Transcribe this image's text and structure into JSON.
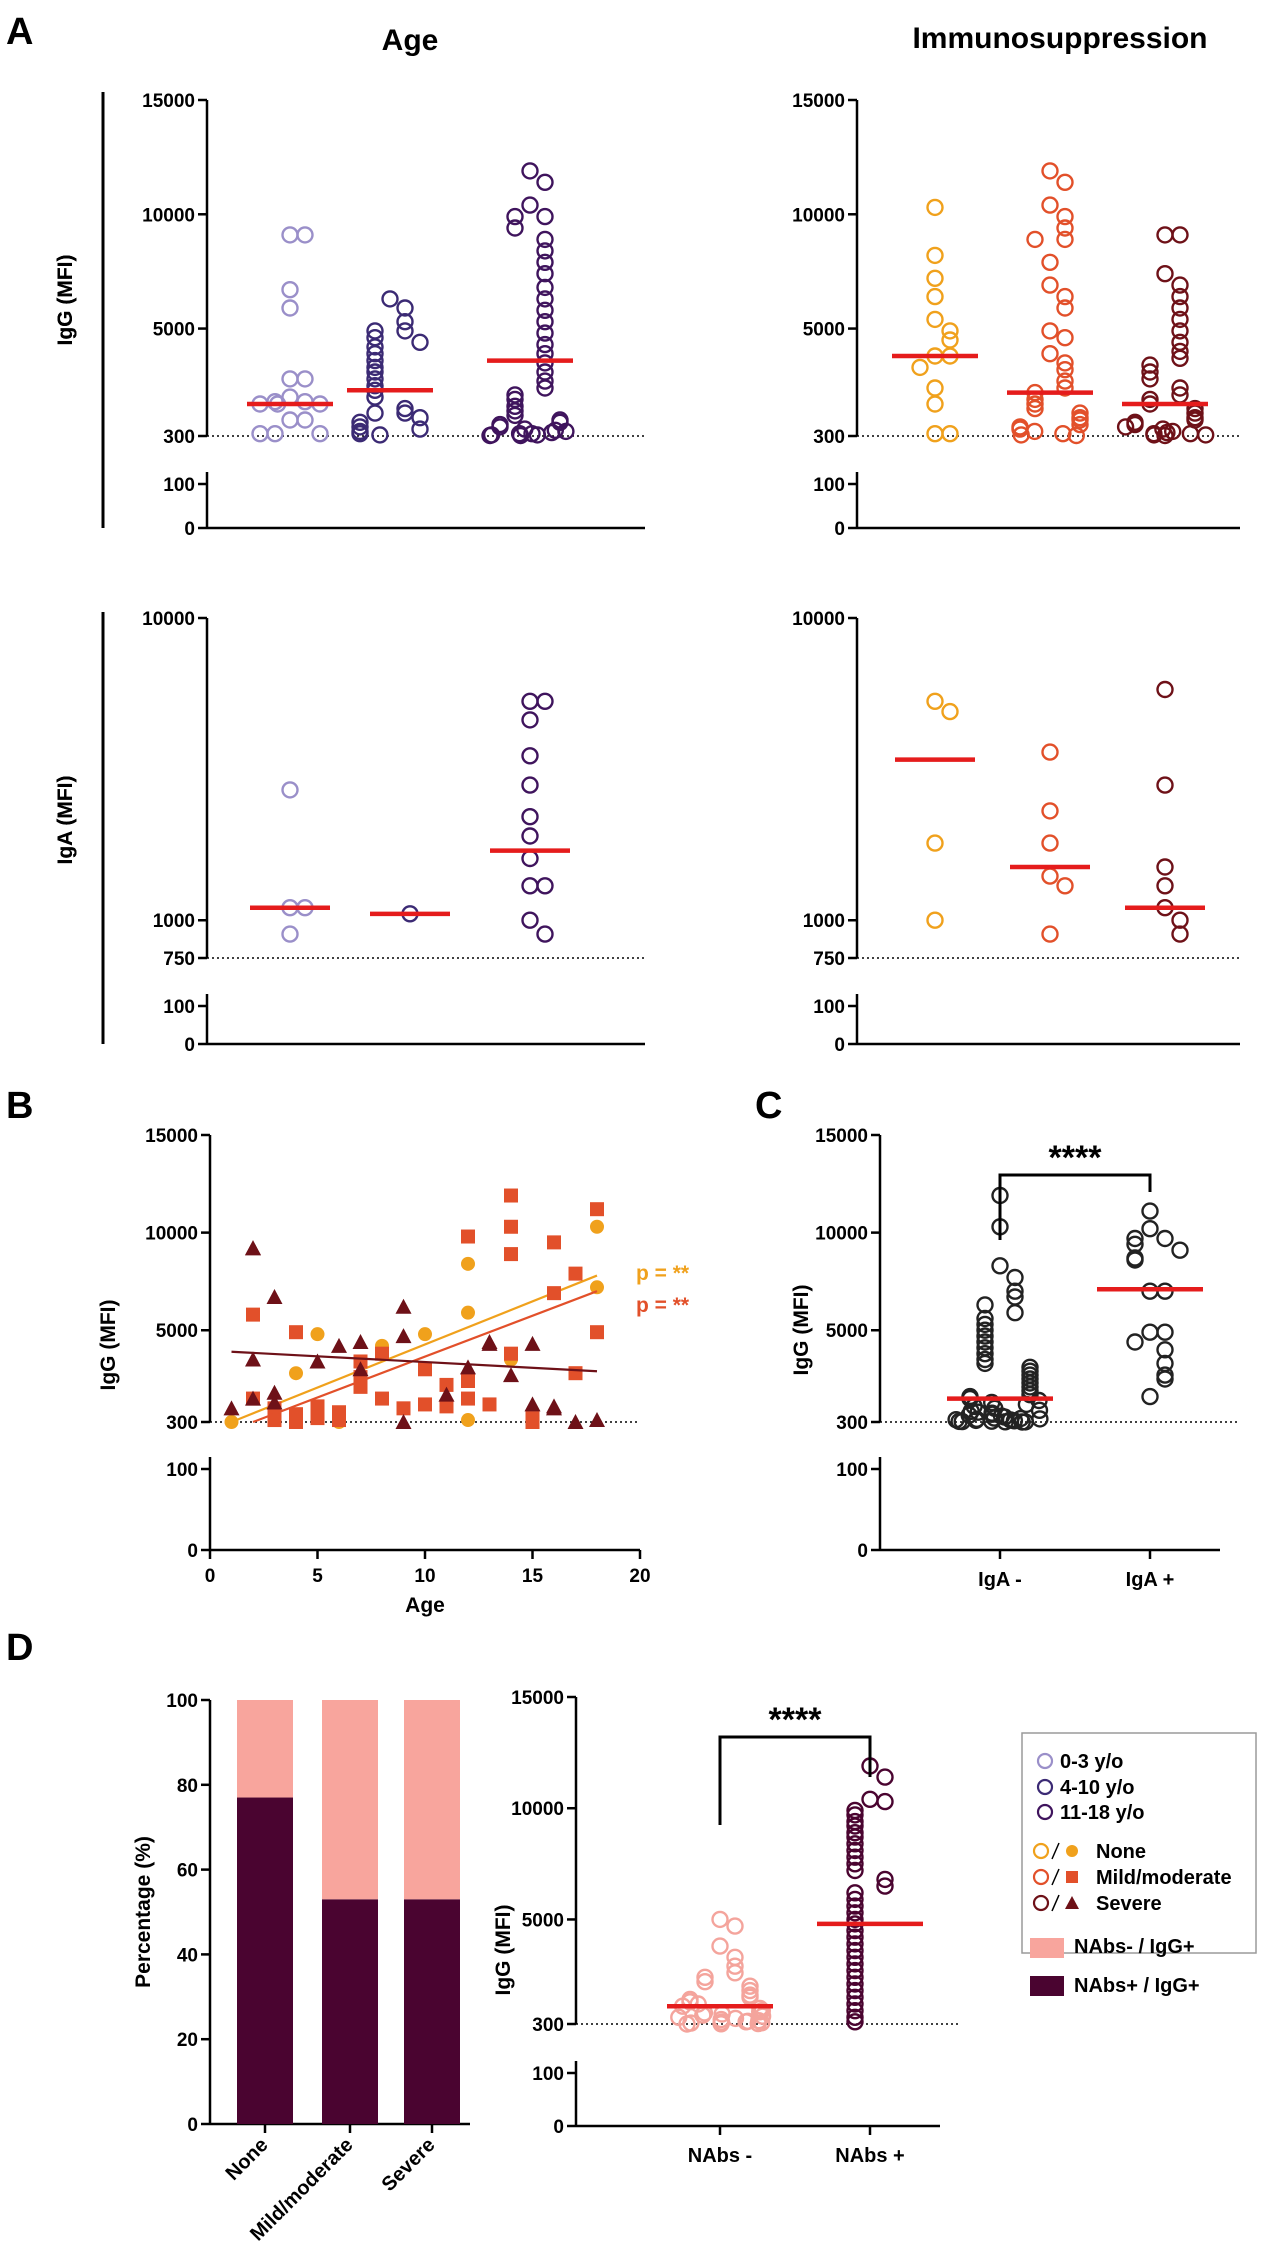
{
  "panel_labels": {
    "a": "A",
    "b": "B",
    "c": "C",
    "d": "D"
  },
  "titles": {
    "age": "Age",
    "immuno": "Immunosuppression"
  },
  "colors": {
    "age_0_3": "#9a8fc9",
    "age_4_10": "#3b2a74",
    "age_11_18": "#3f145d",
    "none": "#f0a11c",
    "mild": "#e2502a",
    "severe": "#6e1118",
    "median": "#e51c1c",
    "black": "#222222",
    "nabs_neg": "#f4a49c",
    "nabs_pos": "#4a0430",
    "bar_neg": "#f8a59d",
    "bar_pos": "#4a0430"
  },
  "legend": {
    "age_0_3": "0-3 y/o",
    "age_4_10": "4-10 y/o",
    "age_11_18": "11-18 y/o",
    "none": "None",
    "mild": "Mild/moderate",
    "severe": "Severe",
    "nabs_neg": "NAbs- / IgG+",
    "nabs_pos": "NAbs+ / IgG+"
  },
  "chart_data": [
    {
      "id": "A-igg-age",
      "type": "scatter",
      "ylabel": "IgG (MFI)",
      "y_upper_ticks": [
        300,
        5000,
        10000,
        15000
      ],
      "y_lower_ticks": [
        0,
        100
      ],
      "threshold": 300,
      "groups": [
        {
          "name": "0-3 y/o",
          "color_key": "age_0_3",
          "median": 1700,
          "values": [
            9100,
            9100,
            6700,
            5900,
            2800,
            2800,
            2000,
            1800,
            1800,
            1700,
            1700,
            1700,
            1000,
            1000,
            400,
            400,
            400
          ]
        },
        {
          "name": "4-10 y/o",
          "color_key": "age_4_10",
          "median": 2300,
          "values": [
            6300,
            5900,
            5300,
            4900,
            4900,
            4600,
            4400,
            4200,
            3900,
            3600,
            3300,
            3100,
            2800,
            2500,
            2300,
            2000,
            1500,
            1300,
            1300,
            1100,
            900,
            700,
            600,
            500,
            400,
            350
          ]
        },
        {
          "name": "11-18 y/o",
          "color_key": "age_11_18",
          "median": 3600,
          "values": [
            11900,
            11400,
            10400,
            9900,
            9900,
            9400,
            8900,
            8400,
            7900,
            7400,
            6800,
            6300,
            5800,
            5300,
            4800,
            4300,
            3900,
            3500,
            3100,
            2700,
            2400,
            2100,
            1900,
            1600,
            1400,
            1200,
            1000,
            900,
            800,
            700,
            600,
            550,
            500,
            450,
            400,
            400,
            350,
            350,
            320,
            320
          ]
        }
      ]
    },
    {
      "id": "A-igg-immuno",
      "type": "scatter",
      "ylabel": "IgG (MFI)",
      "y_upper_ticks": [
        300,
        5000,
        10000,
        15000
      ],
      "y_lower_ticks": [
        0,
        100
      ],
      "threshold": 300,
      "groups": [
        {
          "name": "None",
          "color_key": "none",
          "median": 3800,
          "values": [
            10300,
            8200,
            7200,
            6400,
            5400,
            4900,
            4500,
            3800,
            3800,
            3300,
            2400,
            1700,
            400,
            400
          ]
        },
        {
          "name": "Mild/moderate",
          "color_key": "mild",
          "median": 2200,
          "values": [
            11900,
            11400,
            10400,
            9900,
            9400,
            8900,
            8900,
            7900,
            6900,
            6400,
            5900,
            4900,
            4600,
            3900,
            3500,
            3200,
            2700,
            2400,
            2200,
            1900,
            1700,
            1500,
            1300,
            1100,
            1000,
            800,
            700,
            600,
            500,
            400,
            350,
            320
          ]
        },
        {
          "name": "Severe",
          "color_key": "severe",
          "median": 1700,
          "values": [
            9100,
            9100,
            7400,
            6900,
            6400,
            5900,
            5400,
            4900,
            4400,
            4000,
            3700,
            3400,
            3100,
            2800,
            2400,
            2100,
            1900,
            1700,
            1500,
            1300,
            1100,
            1000,
            900,
            800,
            700,
            600,
            500,
            450,
            400,
            400,
            350,
            350,
            320
          ]
        }
      ]
    },
    {
      "id": "A-iga-age",
      "type": "scatter",
      "ylabel": "IgA (MFI)",
      "y_upper_ticks": [
        750,
        1000,
        10000
      ],
      "y_lower_ticks": [
        0,
        100
      ],
      "threshold": 750,
      "groups": [
        {
          "name": "0-3 y/o",
          "color_key": "age_0_3",
          "median": 1100,
          "values": [
            2700,
            1100,
            1100,
            900
          ]
        },
        {
          "name": "4-10 y/o",
          "color_key": "age_4_10",
          "median": 1050,
          "values": [
            1050
          ]
        },
        {
          "name": "11-18 y/o",
          "color_key": "age_11_18",
          "median": 1700,
          "values": [
            5300,
            5300,
            4600,
            3500,
            2800,
            2200,
            1900,
            1600,
            1300,
            1300,
            1000,
            900
          ]
        }
      ]
    },
    {
      "id": "A-iga-immuno",
      "type": "scatter",
      "ylabel": "IgA (MFI)",
      "y_upper_ticks": [
        750,
        1000,
        10000
      ],
      "y_lower_ticks": [
        0,
        100
      ],
      "threshold": 750,
      "groups": [
        {
          "name": "None",
          "color_key": "none",
          "median": 3400,
          "values": [
            5300,
            4900,
            1800,
            1000
          ]
        },
        {
          "name": "Mild/moderate",
          "color_key": "mild",
          "median": 1500,
          "values": [
            3600,
            2300,
            1800,
            1400,
            1300,
            900
          ]
        },
        {
          "name": "Severe",
          "color_key": "severe",
          "median": 1100,
          "values": [
            5800,
            2800,
            1500,
            1300,
            1100,
            1000,
            900
          ]
        }
      ]
    },
    {
      "id": "B",
      "type": "scatter",
      "xlabel": "Age",
      "ylabel": "IgG (MFI)",
      "x_ticks": [
        0,
        5,
        10,
        15,
        20
      ],
      "y_upper_ticks": [
        300,
        5000,
        10000,
        15000
      ],
      "y_lower_ticks": [
        0,
        100
      ],
      "threshold": 300,
      "series": [
        {
          "name": "None",
          "color_key": "none",
          "marker": "circle",
          "points": [
            [
              1,
              300
            ],
            [
              4,
              2800
            ],
            [
              5,
              4800
            ],
            [
              6,
              300
            ],
            [
              8,
              4200
            ],
            [
              10,
              4800
            ],
            [
              12,
              8400
            ],
            [
              12,
              5900
            ],
            [
              12,
              400
            ],
            [
              14,
              3500
            ],
            [
              18,
              10300
            ],
            [
              18,
              7200
            ]
          ],
          "fit": [
            [
              1,
              300
            ],
            [
              18,
              7800
            ]
          ],
          "p": "p = **"
        },
        {
          "name": "Mild/moderate",
          "color_key": "mild",
          "marker": "square",
          "points": [
            [
              2,
              5800
            ],
            [
              2,
              1500
            ],
            [
              3,
              1000
            ],
            [
              3,
              400
            ],
            [
              4,
              4900
            ],
            [
              4,
              700
            ],
            [
              4,
              300
            ],
            [
              5,
              1100
            ],
            [
              5,
              500
            ],
            [
              6,
              800
            ],
            [
              6,
              400
            ],
            [
              7,
              3400
            ],
            [
              7,
              2600
            ],
            [
              7,
              2100
            ],
            [
              8,
              3800
            ],
            [
              8,
              1500
            ],
            [
              9,
              1000
            ],
            [
              10,
              3000
            ],
            [
              10,
              1200
            ],
            [
              11,
              2200
            ],
            [
              11,
              1100
            ],
            [
              12,
              9800
            ],
            [
              12,
              2400
            ],
            [
              12,
              1500
            ],
            [
              13,
              1200
            ],
            [
              14,
              11900
            ],
            [
              14,
              10300
            ],
            [
              14,
              8900
            ],
            [
              14,
              3800
            ],
            [
              15,
              500
            ],
            [
              15,
              300
            ],
            [
              16,
              9500
            ],
            [
              16,
              6900
            ],
            [
              17,
              7900
            ],
            [
              17,
              2800
            ],
            [
              18,
              11200
            ],
            [
              18,
              4900
            ]
          ],
          "fit": [
            [
              2,
              300
            ],
            [
              18,
              7000
            ]
          ],
          "p": "p = **"
        },
        {
          "name": "Severe",
          "color_key": "severe",
          "marker": "triangle",
          "points": [
            [
              1,
              1000
            ],
            [
              2,
              9200
            ],
            [
              2,
              9200
            ],
            [
              2,
              3500
            ],
            [
              2,
              1500
            ],
            [
              3,
              6700
            ],
            [
              3,
              1800
            ],
            [
              3,
              1300
            ],
            [
              5,
              3400
            ],
            [
              6,
              4200
            ],
            [
              7,
              4400
            ],
            [
              7,
              3000
            ],
            [
              9,
              6200
            ],
            [
              9,
              4700
            ],
            [
              9,
              300
            ],
            [
              11,
              1700
            ],
            [
              12,
              3100
            ],
            [
              13,
              4300
            ],
            [
              13,
              4400
            ],
            [
              14,
              2700
            ],
            [
              15,
              4300
            ],
            [
              15,
              1200
            ],
            [
              16,
              1100
            ],
            [
              16,
              1000
            ],
            [
              17,
              300
            ],
            [
              18,
              400
            ]
          ],
          "fit": [
            [
              1,
              3900
            ],
            [
              18,
              2900
            ]
          ]
        }
      ]
    },
    {
      "id": "C",
      "type": "scatter",
      "ylabel": "IgG (MFI)",
      "y_upper_ticks": [
        300,
        5000,
        10000,
        15000
      ],
      "y_lower_ticks": [
        0,
        100
      ],
      "threshold": 300,
      "significance": "****",
      "groups": [
        {
          "name": "IgA -",
          "color_key": "black",
          "median": 1500,
          "values": [
            11900,
            10300,
            8300,
            7700,
            7000,
            6700,
            6300,
            5900,
            5600,
            5300,
            5000,
            4700,
            4400,
            4100,
            3800,
            3500,
            3300,
            3100,
            2900,
            2700,
            2500,
            2300,
            2100,
            1900,
            1700,
            1600,
            1500,
            1400,
            1300,
            1200,
            1100,
            1000,
            900,
            850,
            800,
            750,
            700,
            650,
            600,
            550,
            500,
            480,
            460,
            440,
            420,
            400,
            380,
            360,
            340,
            330,
            320,
            310,
            305,
            300
          ]
        },
        {
          "name": "IgA +",
          "color_key": "black",
          "median": 7100,
          "values": [
            11100,
            10200,
            9700,
            9700,
            9400,
            9100,
            8700,
            8600,
            7000,
            7000,
            4900,
            4900,
            4400,
            4000,
            3300,
            2700,
            2500,
            1600
          ]
        }
      ]
    },
    {
      "id": "D-bar",
      "type": "bar",
      "stacked": true,
      "ylabel": "Percentage (%)",
      "y_ticks": [
        0,
        20,
        40,
        60,
        80,
        100
      ],
      "categories": [
        "None",
        "Mild/moderate",
        "Severe"
      ],
      "series": [
        {
          "name": "NAbs+ / IgG+",
          "color_key": "bar_pos",
          "values": [
            77,
            53,
            53
          ]
        },
        {
          "name": "NAbs- / IgG+",
          "color_key": "bar_neg",
          "values": [
            23,
            47,
            47
          ]
        }
      ]
    },
    {
      "id": "D-scatter",
      "type": "scatter",
      "ylabel": "IgG (MFI)",
      "y_upper_ticks": [
        300,
        5000,
        10000,
        15000
      ],
      "y_lower_ticks": [
        0,
        100
      ],
      "threshold": 300,
      "significance": "****",
      "groups": [
        {
          "name": "NAbs -",
          "color_key": "nabs_neg",
          "median": 1100,
          "values": [
            5000,
            4700,
            3800,
            3300,
            2900,
            2600,
            2400,
            2200,
            2000,
            1800,
            1600,
            1500,
            1400,
            1300,
            1200,
            1100,
            1000,
            900,
            850,
            800,
            750,
            700,
            650,
            600,
            550,
            500,
            450,
            420,
            400,
            380,
            360,
            340,
            320,
            310,
            300
          ]
        },
        {
          "name": "NAbs +",
          "color_key": "nabs_pos",
          "median": 4800,
          "values": [
            11900,
            11400,
            10400,
            10300,
            9900,
            9700,
            9400,
            9200,
            8900,
            8700,
            8400,
            8100,
            7800,
            7500,
            7200,
            6800,
            6500,
            6200,
            5900,
            5600,
            5300,
            5000,
            4800,
            4500,
            4200,
            3900,
            3600,
            3300,
            3000,
            2700,
            2400,
            2100,
            1800,
            1500,
            1200,
            900,
            600,
            400
          ]
        }
      ]
    }
  ]
}
